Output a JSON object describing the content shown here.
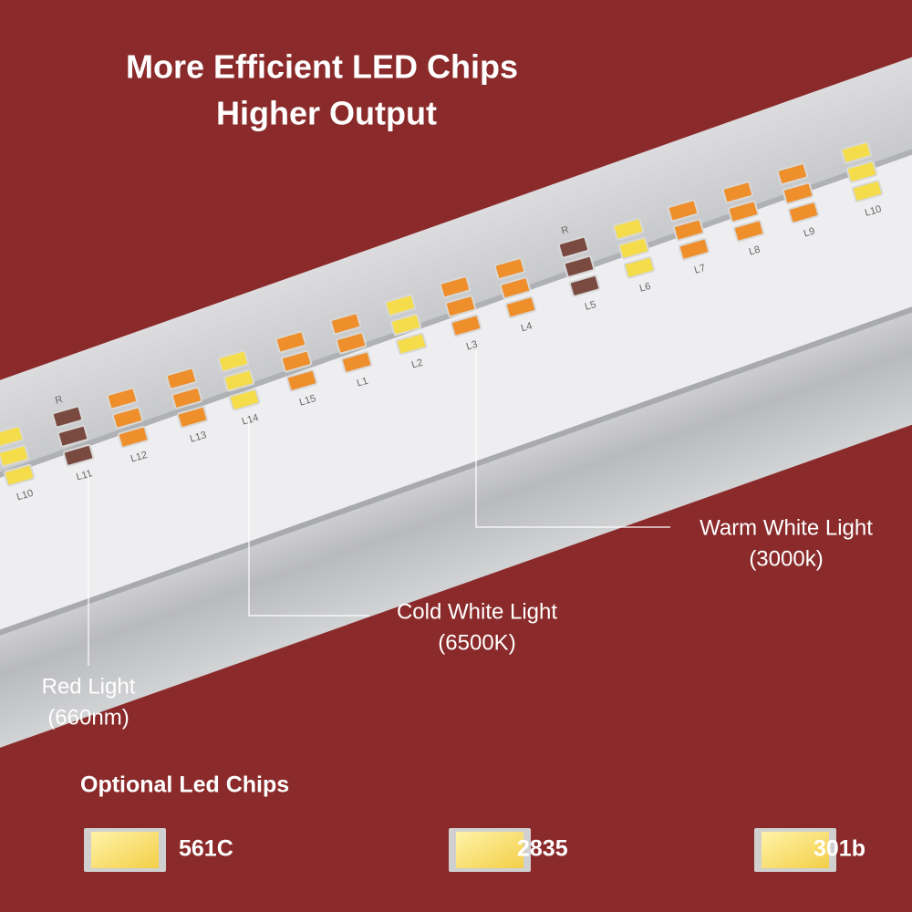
{
  "header": {
    "title_line1": "More Efficient LED Chips",
    "title_line2": "Higher Output"
  },
  "board": {
    "chips": [
      {
        "label": "L10",
        "color": "#f4dc4a"
      },
      {
        "label": "L11",
        "color": "#7a4a40",
        "marker": "R"
      },
      {
        "label": "L12",
        "color": "#ef8f2c"
      },
      {
        "label": "L13",
        "color": "#ef8f2c"
      },
      {
        "label": "L14",
        "color": "#f4dc4a"
      },
      {
        "label": "L15",
        "color": "#ef8f2c"
      },
      {
        "label": "L1",
        "color": "#ef8f2c"
      },
      {
        "label": "L2",
        "color": "#f4dc4a"
      },
      {
        "label": "L3",
        "color": "#ef8f2c"
      },
      {
        "label": "L4",
        "color": "#ef8f2c"
      },
      {
        "label": "L5",
        "color": "#7a4a40",
        "marker": "R"
      },
      {
        "label": "L6",
        "color": "#f4dc4a"
      },
      {
        "label": "L7",
        "color": "#ef8f2c"
      },
      {
        "label": "L8",
        "color": "#ef8f2c"
      },
      {
        "label": "L9",
        "color": "#ef8f2c"
      },
      {
        "label": "L10",
        "color": "#f4dc4a"
      }
    ]
  },
  "callouts": {
    "warm": {
      "name": "Warm White Light",
      "detail": "(3000k)"
    },
    "cold": {
      "name": "Cold White Light",
      "detail": "(6500K)"
    },
    "red": {
      "name": "Red Light",
      "detail": "(660nm)"
    }
  },
  "options": {
    "title": "Optional  Led Chips",
    "items": [
      "561C",
      "2835",
      "301b"
    ]
  }
}
